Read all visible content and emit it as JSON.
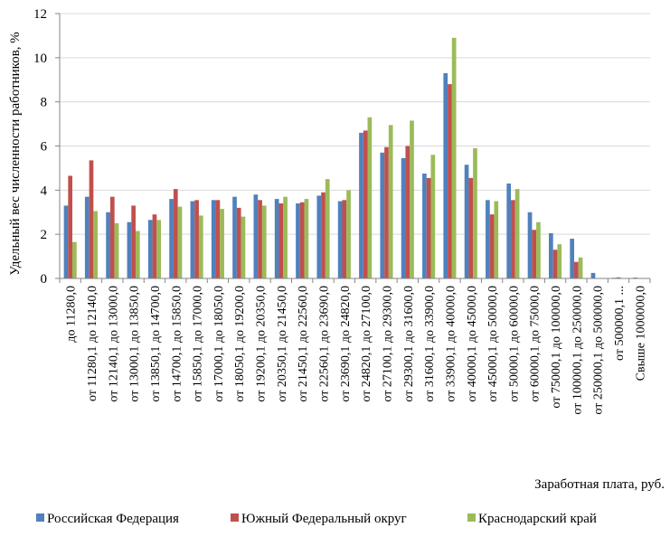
{
  "chart_data": {
    "type": "bar",
    "title": "",
    "xlabel": "Заработная плата,  руб.",
    "ylabel": "Удельный вес численности работников, %",
    "ylim": [
      0,
      12
    ],
    "yticks": [
      "0",
      "2",
      "4",
      "6",
      "8",
      "10",
      "12"
    ],
    "grid": true,
    "legend_position": "bottom",
    "categories": [
      "до  11280,0",
      "от 11280,1  до 12140,0",
      "от 12140,1  до 13000,0",
      "от 13000,1  до 13850,0",
      "от 13850,1  до 14700,0",
      "от 14700,1  до 15850,0",
      "от 15850,1  до 17000,0",
      "от 17000,1  до 18050,0",
      "от 18050,1  до 19200,0",
      "от 19200,1  до 20350,0",
      "от 20350,1  до 21450,0",
      "от 21450,1  до 22560,0",
      "от 22560,1  до 23690,0",
      "от 23690,1  до 24820,0",
      "от 24820,1  до 27100,0",
      "от 27100,1  до 29300,0",
      "от 29300,1  до 31600,0",
      "от 31600,1  до 33900,0",
      "от 33900,1  до 40000,0",
      "от 40000,1  до 45000,0",
      "от 45000,1  до 50000,0",
      "от 50000,1  до 60000,0",
      "от 60000,1  до 75000,0",
      "от 75000,1  до 100000,0",
      "от 100000,1  до 250000,0",
      "от 250000,1  до 500000,0",
      "от 500000,1 ...",
      "Свыше 1000000,0"
    ],
    "series": [
      {
        "name": "Российская Федерация",
        "color": "#4f81bd",
        "values": [
          3.3,
          3.7,
          3.0,
          2.55,
          2.65,
          3.6,
          3.5,
          3.55,
          3.7,
          3.8,
          3.6,
          3.4,
          3.75,
          3.5,
          6.6,
          5.7,
          5.45,
          4.75,
          9.3,
          5.15,
          3.55,
          4.3,
          3.0,
          2.05,
          1.8,
          0.25,
          0.03,
          0.04
        ]
      },
      {
        "name": "Южный Федеральный округ",
        "color": "#c0504d",
        "values": [
          4.65,
          5.35,
          3.7,
          3.3,
          2.9,
          4.05,
          3.55,
          3.55,
          3.2,
          3.55,
          3.4,
          3.45,
          3.9,
          3.55,
          6.7,
          5.95,
          6.0,
          4.55,
          8.8,
          4.55,
          2.9,
          3.55,
          2.2,
          1.3,
          0.75,
          0.02,
          0.05,
          0.01
        ]
      },
      {
        "name": "Краснодарский край",
        "color": "#9bbb59",
        "values": [
          1.65,
          3.05,
          2.5,
          2.15,
          2.65,
          3.25,
          2.85,
          3.15,
          2.8,
          3.3,
          3.7,
          3.6,
          4.5,
          4.0,
          7.3,
          6.95,
          7.15,
          5.6,
          10.9,
          5.9,
          3.5,
          4.05,
          2.55,
          1.55,
          0.95,
          0.0,
          0.0,
          0.0
        ]
      }
    ]
  }
}
